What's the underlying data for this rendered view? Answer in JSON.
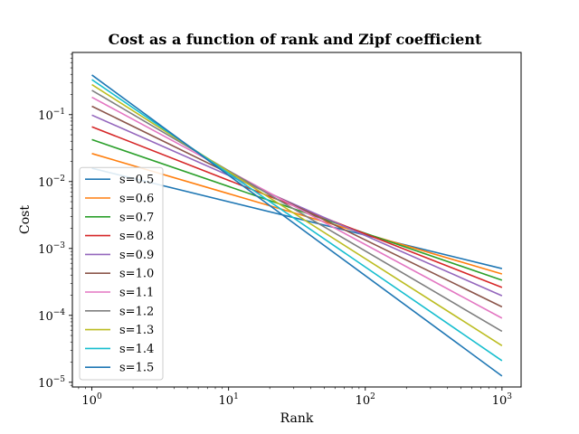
{
  "chart_data": {
    "type": "line",
    "title": "Cost as a function of rank and Zipf coefficient",
    "xlabel": "Rank",
    "ylabel": "Cost",
    "xscale": "log",
    "yscale": "log",
    "xlim": [
      0.72,
      1380
    ],
    "ylim": [
      8.5e-06,
      0.85
    ],
    "xticks": [
      {
        "value": 1,
        "base": "10",
        "exp": "0"
      },
      {
        "value": 10,
        "base": "10",
        "exp": "1"
      },
      {
        "value": 100,
        "base": "10",
        "exp": "2"
      },
      {
        "value": 1000,
        "base": "10",
        "exp": "3"
      }
    ],
    "yticks": [
      {
        "value": 0.1,
        "base": "10",
        "exp": "−1"
      },
      {
        "value": 0.01,
        "base": "10",
        "exp": "−2"
      },
      {
        "value": 0.001,
        "base": "10",
        "exp": "−3"
      },
      {
        "value": 0.0001,
        "base": "10",
        "exp": "−4"
      },
      {
        "value": 1e-05,
        "base": "10",
        "exp": "−5"
      }
    ],
    "grid": false,
    "legend_position": "lower-left",
    "x": [
      1,
      1000
    ],
    "series": [
      {
        "name": "s=0.5",
        "color": "#1f77b4",
        "values": [
          0.0158,
          0.0005
        ]
      },
      {
        "name": "s=0.6",
        "color": "#ff7f0e",
        "values": [
          0.0262,
          0.000416
        ]
      },
      {
        "name": "s=0.7",
        "color": "#2ca02c",
        "values": [
          0.0423,
          0.000336
        ]
      },
      {
        "name": "s=0.8",
        "color": "#d62728",
        "values": [
          0.0658,
          0.000262
        ]
      },
      {
        "name": "s=0.9",
        "color": "#9467bd",
        "values": [
          0.0983,
          0.000196
        ]
      },
      {
        "name": "s=1.0",
        "color": "#8c564b",
        "values": [
          0.1336,
          0.000134
        ]
      },
      {
        "name": "s=1.1",
        "color": "#e377c2",
        "values": [
          0.182,
          9.08e-05
        ]
      },
      {
        "name": "s=1.2",
        "color": "#7f7f7f",
        "values": [
          0.2307,
          5.77e-05
        ]
      },
      {
        "name": "s=1.3",
        "color": "#bcbd22",
        "values": [
          0.2808,
          3.52e-05
        ]
      },
      {
        "name": "s=1.4",
        "color": "#17becf",
        "values": [
          0.3335,
          2.1e-05
        ]
      },
      {
        "name": "s=1.5",
        "color": "#1f77b4",
        "values": [
          0.3914,
          1.24e-05
        ]
      }
    ]
  }
}
